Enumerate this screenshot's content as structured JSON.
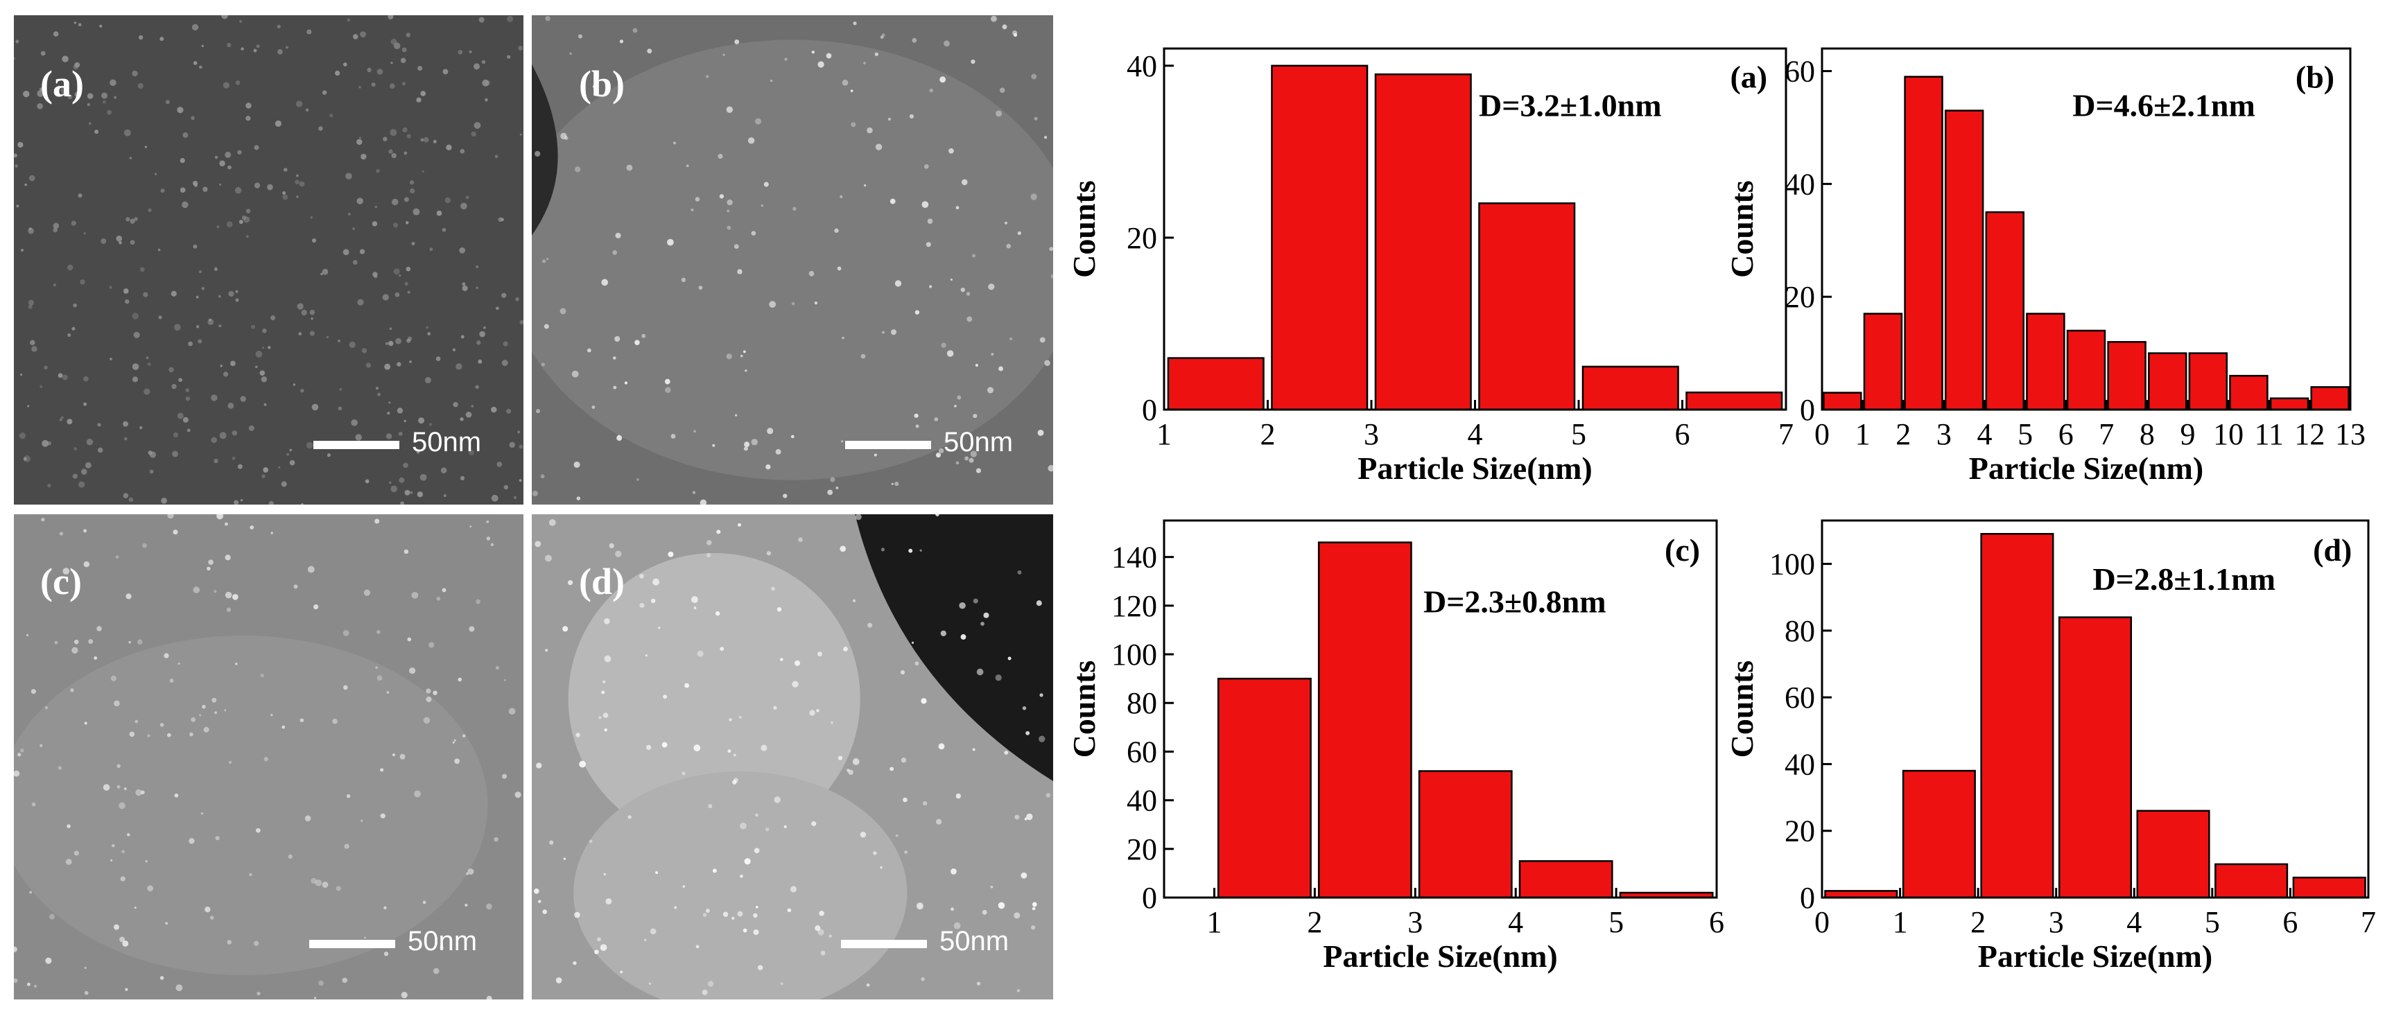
{
  "micrographs": [
    {
      "label": "(a)",
      "scale": "50nm",
      "tone": "#4a4a4a",
      "particle_tone": "#9a9a9a"
    },
    {
      "label": "(b)",
      "scale": "50nm",
      "tone": "#6e6e6e",
      "particle_tone": "#f2f2f2"
    },
    {
      "label": "(c)",
      "scale": "50nm",
      "tone": "#8a8a8a",
      "particle_tone": "#e8e8e8"
    },
    {
      "label": "(d)",
      "scale": "50nm",
      "tone": "#9c9c9c",
      "particle_tone": "#ffffff"
    }
  ],
  "chart_data": [
    {
      "type": "bar",
      "panel": "(a)",
      "annotation": "D=3.2±1.0nm",
      "xlabel": "Particle Size(nm)",
      "ylabel": "Counts",
      "xlim": [
        1,
        7
      ],
      "ylim": [
        0,
        42
      ],
      "x_ticks": [
        1,
        2,
        3,
        4,
        5,
        6,
        7
      ],
      "y_ticks": [
        0,
        20,
        40
      ],
      "bins": [
        [
          1,
          2
        ],
        [
          2,
          3
        ],
        [
          3,
          4
        ],
        [
          4,
          5
        ],
        [
          5,
          6
        ],
        [
          6,
          7
        ]
      ],
      "values": [
        6,
        40,
        39,
        24,
        5,
        2
      ],
      "bar_color": "#ee1111"
    },
    {
      "type": "bar",
      "panel": "(b)",
      "annotation": "D=4.6±2.1nm",
      "xlabel": "Particle Size(nm)",
      "ylabel": "Counts",
      "xlim": [
        0,
        13
      ],
      "ylim": [
        0,
        64
      ],
      "x_ticks": [
        0,
        1,
        2,
        3,
        4,
        5,
        6,
        7,
        8,
        9,
        10,
        11,
        12,
        13
      ],
      "y_ticks": [
        0,
        20,
        40,
        60
      ],
      "bins": [
        [
          0,
          1
        ],
        [
          1,
          2
        ],
        [
          2,
          3
        ],
        [
          3,
          4
        ],
        [
          4,
          5
        ],
        [
          5,
          6
        ],
        [
          6,
          7
        ],
        [
          7,
          8
        ],
        [
          8,
          9
        ],
        [
          9,
          10
        ],
        [
          10,
          11
        ],
        [
          11,
          12
        ],
        [
          12,
          13
        ]
      ],
      "values": [
        3,
        17,
        59,
        53,
        35,
        17,
        14,
        12,
        10,
        10,
        6,
        2,
        4
      ],
      "bar_color": "#ee1111"
    },
    {
      "type": "bar",
      "panel": "(c)",
      "annotation": "D=2.3±0.8nm",
      "xlabel": "Particle Size(nm)",
      "ylabel": "Counts",
      "xlim": [
        0.5,
        6
      ],
      "ylim": [
        0,
        155
      ],
      "x_ticks": [
        1,
        2,
        3,
        4,
        5,
        6
      ],
      "y_ticks": [
        0,
        20,
        40,
        60,
        80,
        100,
        120,
        140
      ],
      "bins": [
        [
          1,
          2
        ],
        [
          2,
          3
        ],
        [
          3,
          4
        ],
        [
          4,
          5
        ],
        [
          5,
          6
        ]
      ],
      "values": [
        90,
        146,
        52,
        15,
        2
      ],
      "bar_color": "#ee1111"
    },
    {
      "type": "bar",
      "panel": "(d)",
      "annotation": "D=2.8±1.1nm",
      "xlabel": "Particle Size(nm)",
      "ylabel": "Counts",
      "xlim": [
        0,
        7
      ],
      "ylim": [
        0,
        113
      ],
      "x_ticks": [
        0,
        1,
        2,
        3,
        4,
        5,
        6,
        7
      ],
      "y_ticks": [
        0,
        20,
        40,
        60,
        80,
        100
      ],
      "bins": [
        [
          0,
          1
        ],
        [
          1,
          2
        ],
        [
          2,
          3
        ],
        [
          3,
          4
        ],
        [
          4,
          5
        ],
        [
          5,
          6
        ],
        [
          6,
          7
        ]
      ],
      "values": [
        2,
        38,
        109,
        84,
        26,
        10,
        6
      ],
      "bar_color": "#ee1111"
    }
  ]
}
